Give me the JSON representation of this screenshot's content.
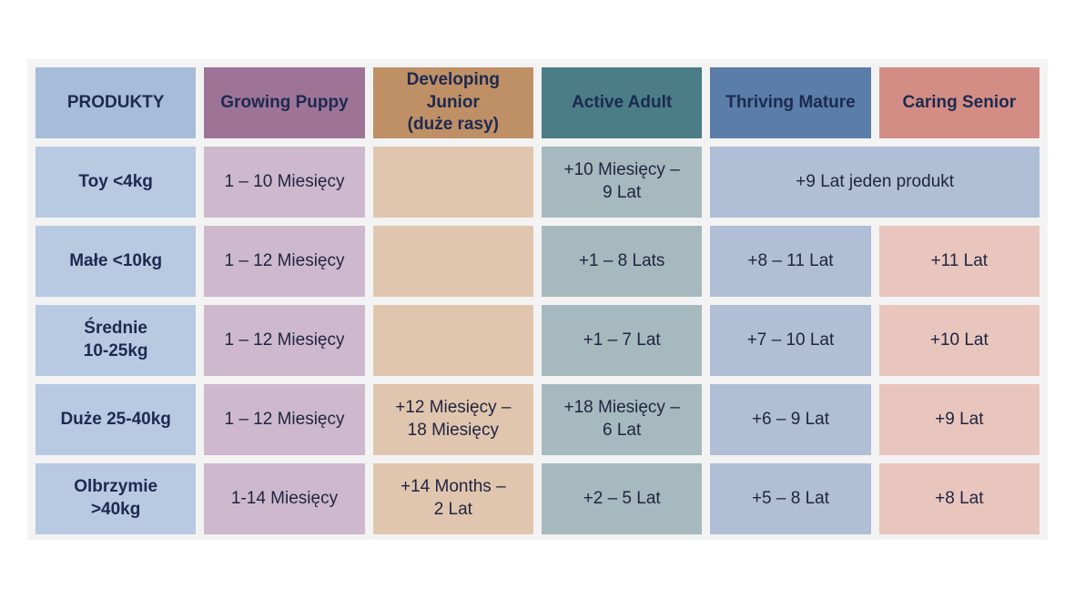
{
  "header": {
    "products": "PRODUKTY",
    "growing_puppy": "Growing Puppy",
    "developing_junior": "Developing\nJunior\n(duże rasy)",
    "active_adult": "Active Adult",
    "thriving_mature": "Thriving Mature",
    "caring_senior": "Caring Senior"
  },
  "rows": [
    {
      "size": "Toy <4kg",
      "puppy": "1 – 10 Miesięcy",
      "junior": "",
      "adult": "+10 Miesięcy –\n9 Lat",
      "mature_senior": "+9 Lat jeden produkt"
    },
    {
      "size": "Małe <10kg",
      "puppy": "1 – 12 Miesięcy",
      "junior": "",
      "adult": "+1 – 8 Lats",
      "mature": "+8  – 11 Lat",
      "senior": "+11 Lat"
    },
    {
      "size": "Średnie\n10-25kg",
      "puppy": "1 – 12 Miesięcy",
      "junior": "",
      "adult": "+1 – 7 Lat",
      "mature": "+7 – 10 Lat",
      "senior": "+10 Lat"
    },
    {
      "size": "Duże 25-40kg",
      "puppy": "1 – 12 Miesięcy",
      "junior": "+12 Miesięcy –\n18 Miesięcy",
      "adult": "+18 Miesięcy –\n6 Lat",
      "mature": "+6 – 9 Lat",
      "senior": "+9 Lat"
    },
    {
      "size": "Olbrzymie\n>40kg",
      "puppy": "1-14 Miesięcy",
      "junior": "+14 Months –\n2 Lat",
      "adult": "+2 – 5 Lat",
      "mature": "+5 – 8 Lat",
      "senior": "+8 Lat"
    }
  ],
  "colors": {
    "products_header": "#a7bcd8",
    "puppy_header": "#9e7496",
    "junior_header": "#bf8f65",
    "adult_header": "#4b7d86",
    "mature_header": "#5a7ea9",
    "senior_header": "#d38d84"
  }
}
